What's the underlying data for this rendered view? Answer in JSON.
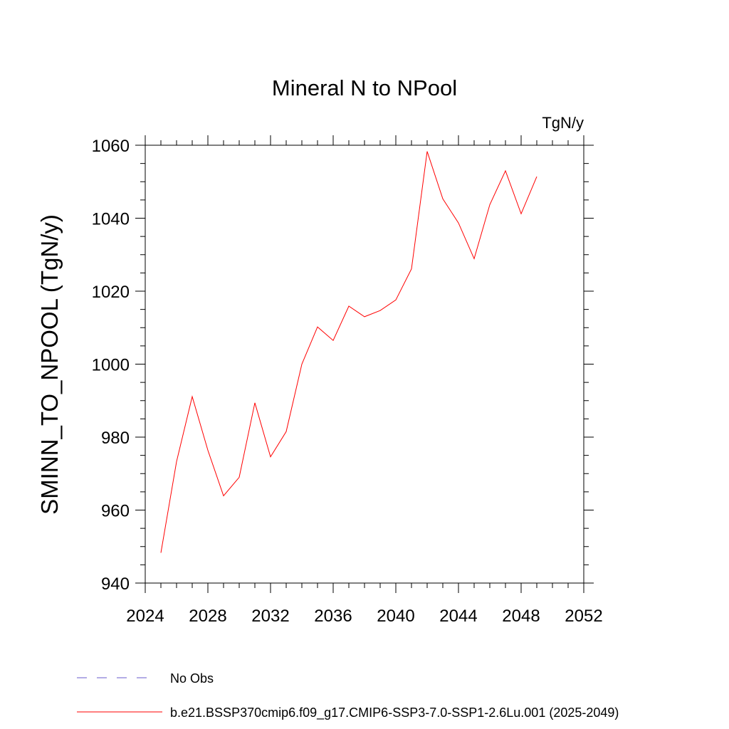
{
  "chart_data": {
    "type": "line",
    "title": "Mineral N to NPool",
    "units_label": "TgN/y",
    "ylabel": "SMINN_TO_NPOOL  (TgN/y)",
    "xlabel": "",
    "xlim": [
      2024,
      2052
    ],
    "ylim": [
      940,
      1060
    ],
    "xticks": [
      2024,
      2028,
      2032,
      2036,
      2040,
      2044,
      2048,
      2052
    ],
    "yticks": [
      940,
      960,
      980,
      1000,
      1020,
      1040,
      1060
    ],
    "grid": false,
    "legend_placement": "bottom",
    "series": [
      {
        "name": "b.e21.BSSP370cmip6.f09_g17.CMIP6-SSP3-7.0-SSP1-2.6Lu.001 (2025-2049)",
        "color": "#ff0000",
        "style": "solid",
        "x": [
          2025,
          2026,
          2027,
          2028,
          2029,
          2030,
          2031,
          2032,
          2033,
          2034,
          2035,
          2036,
          2037,
          2038,
          2039,
          2040,
          2041,
          2042,
          2043,
          2044,
          2045,
          2046,
          2047,
          2048,
          2049
        ],
        "values": [
          948.3,
          973.3,
          991.1,
          976.4,
          963.9,
          969.0,
          989.4,
          974.6,
          981.5,
          1000.0,
          1010.2,
          1006.5,
          1015.9,
          1013.0,
          1014.7,
          1017.6,
          1026.1,
          1058.3,
          1045.3,
          1038.7,
          1028.9,
          1043.7,
          1053.0,
          1041.2,
          1051.4
        ]
      },
      {
        "name": "No Obs",
        "color": "#6a5acd",
        "style": "dashed",
        "x": [],
        "values": []
      }
    ]
  }
}
